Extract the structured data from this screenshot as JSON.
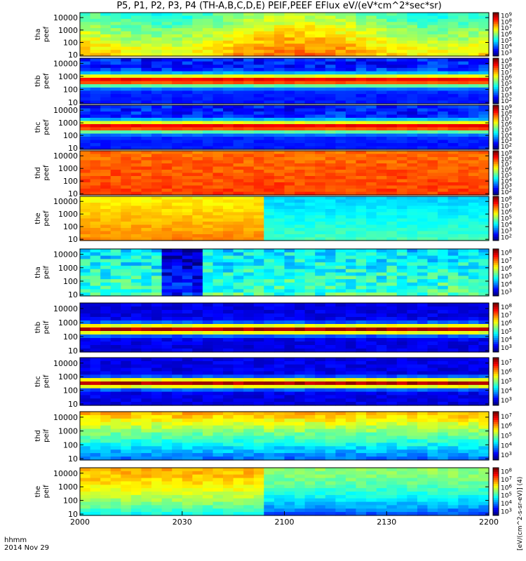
{
  "chart_data": {
    "type": "heatmap",
    "title": "P5, P1, P2, P3, P4 (TH-A,B,C,D,E) PEIF,PEEF EFlux eV/(eV*cm^2*sec*sr)",
    "x_ticks": [
      "2000",
      "2030",
      "2100",
      "2130",
      "2200"
    ],
    "x_axis_label": "hhmm",
    "date_label": "2014 Nov 29",
    "y_ticks": [
      "10",
      "100",
      "1000",
      "10000"
    ],
    "colorbar_title": "[eV/(cm^2-s-sr-eV)] (4)",
    "panels": [
      {
        "probe": "tha",
        "species": "peef",
        "cb_ticks": [
          "10^3",
          "10^4",
          "10^5",
          "10^6",
          "10^7",
          "10^8",
          "10^9"
        ],
        "profile": "electron_hot"
      },
      {
        "probe": "thb",
        "species": "peef",
        "cb_ticks": [
          "10^2",
          "10^3",
          "10^4",
          "10^5",
          "10^6",
          "10^7",
          "10^8",
          "10^9"
        ],
        "profile": "electron_band"
      },
      {
        "probe": "thc",
        "species": "peef",
        "cb_ticks": [
          "10^2",
          "10^3",
          "10^4",
          "10^5",
          "10^6",
          "10^7",
          "10^8",
          "10^9"
        ],
        "profile": "electron_band"
      },
      {
        "probe": "thd",
        "species": "peef",
        "cb_ticks": [
          "10^2",
          "10^3",
          "10^4",
          "10^5",
          "10^6",
          "10^7",
          "10^8",
          "10^9"
        ],
        "profile": "electron_red"
      },
      {
        "probe": "the",
        "species": "peef",
        "cb_ticks": [
          "10^2",
          "10^3",
          "10^4",
          "10^5",
          "10^6",
          "10^7",
          "10^8"
        ],
        "profile": "electron_decay"
      },
      {
        "probe": "tha",
        "species": "peif",
        "cb_ticks": [
          "10^3",
          "10^4",
          "10^5",
          "10^6",
          "10^7",
          "10^8"
        ],
        "profile": "ion_a"
      },
      {
        "probe": "thb",
        "species": "peif",
        "cb_ticks": [
          "10^3",
          "10^4",
          "10^5",
          "10^6",
          "10^7",
          "10^8"
        ],
        "profile": "ion_band"
      },
      {
        "probe": "thc",
        "species": "peif",
        "cb_ticks": [
          "10^3",
          "10^4",
          "10^5",
          "10^6",
          "10^7"
        ],
        "profile": "ion_band"
      },
      {
        "probe": "thd",
        "species": "peif",
        "cb_ticks": [
          "10^3",
          "10^4",
          "10^5",
          "10^6",
          "10^7"
        ],
        "profile": "ion_d"
      },
      {
        "probe": "the",
        "species": "peif",
        "cb_ticks": [
          "10^3",
          "10^4",
          "10^5",
          "10^6",
          "10^7",
          "10^8"
        ],
        "profile": "ion_e"
      }
    ]
  }
}
